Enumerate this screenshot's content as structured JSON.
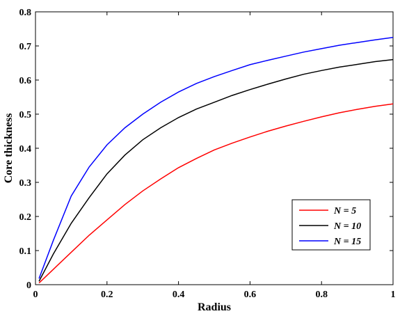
{
  "chart_data": {
    "type": "line",
    "title": "",
    "xlabel": "Radius",
    "ylabel": "Core thickness",
    "xlim": [
      0,
      1
    ],
    "ylim": [
      0,
      0.8
    ],
    "xticks": [
      0,
      0.2,
      0.4,
      0.6,
      0.8,
      1
    ],
    "xtick_labels": [
      "0",
      "0.2",
      "0.4",
      "0.6",
      "0.8",
      "1"
    ],
    "yticks": [
      0,
      0.1,
      0.2,
      0.3,
      0.4,
      0.5,
      0.6,
      0.7,
      0.8
    ],
    "ytick_labels": [
      "0",
      "0.1",
      "0.2",
      "0.3",
      "0.4",
      "0.5",
      "0.6",
      "0.7",
      "0.8"
    ],
    "grid": false,
    "legend_position": "bottom-right",
    "series": [
      {
        "name": "N = 5",
        "color": "#ff0000",
        "x": [
          0.01,
          0.05,
          0.1,
          0.15,
          0.2,
          0.25,
          0.3,
          0.35,
          0.4,
          0.45,
          0.5,
          0.55,
          0.6,
          0.65,
          0.7,
          0.75,
          0.8,
          0.85,
          0.9,
          0.95,
          1.0
        ],
        "y": [
          0.005,
          0.045,
          0.095,
          0.145,
          0.19,
          0.235,
          0.275,
          0.31,
          0.343,
          0.37,
          0.395,
          0.415,
          0.433,
          0.45,
          0.465,
          0.479,
          0.492,
          0.504,
          0.514,
          0.523,
          0.53
        ]
      },
      {
        "name": "N = 10",
        "color": "#000000",
        "x": [
          0.01,
          0.05,
          0.1,
          0.15,
          0.2,
          0.25,
          0.3,
          0.35,
          0.4,
          0.45,
          0.5,
          0.55,
          0.6,
          0.65,
          0.7,
          0.75,
          0.8,
          0.85,
          0.9,
          0.95,
          1.0
        ],
        "y": [
          0.01,
          0.09,
          0.18,
          0.255,
          0.325,
          0.38,
          0.425,
          0.46,
          0.49,
          0.515,
          0.535,
          0.555,
          0.572,
          0.588,
          0.603,
          0.617,
          0.628,
          0.638,
          0.646,
          0.654,
          0.66
        ]
      },
      {
        "name": "N = 15",
        "color": "#0000ff",
        "x": [
          0.01,
          0.05,
          0.1,
          0.15,
          0.2,
          0.25,
          0.3,
          0.35,
          0.4,
          0.45,
          0.5,
          0.55,
          0.6,
          0.65,
          0.7,
          0.75,
          0.8,
          0.85,
          0.9,
          0.95,
          1.0
        ],
        "y": [
          0.018,
          0.13,
          0.26,
          0.345,
          0.41,
          0.46,
          0.5,
          0.535,
          0.565,
          0.59,
          0.61,
          0.628,
          0.645,
          0.658,
          0.67,
          0.682,
          0.692,
          0.702,
          0.71,
          0.718,
          0.725
        ]
      }
    ]
  }
}
